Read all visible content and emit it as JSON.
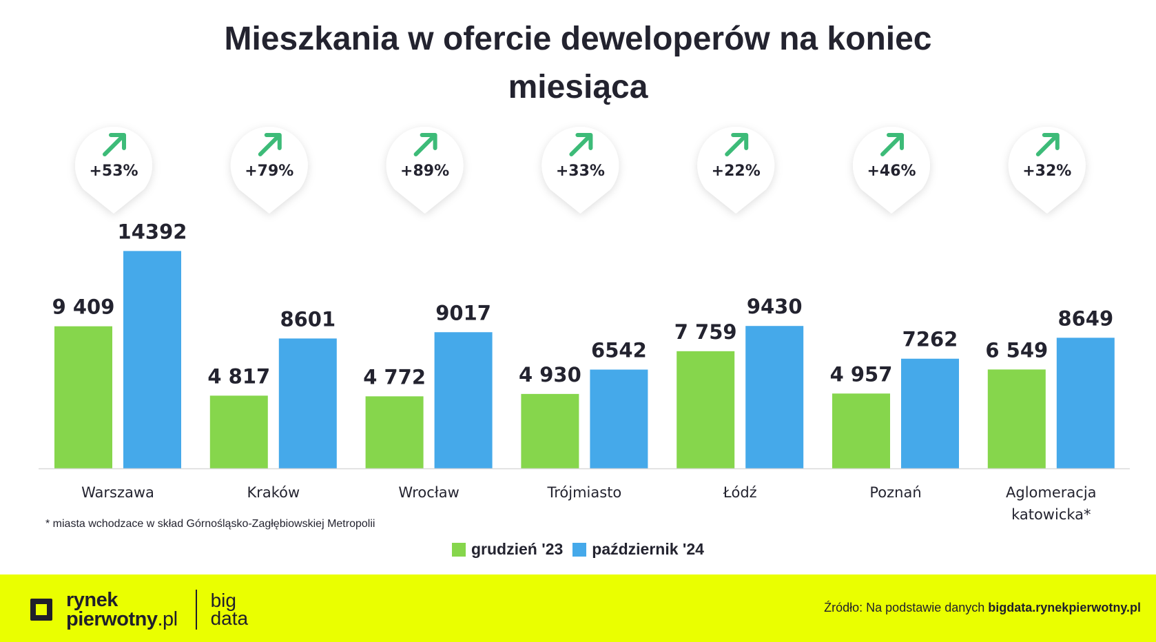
{
  "title": "Mieszkania w ofercie deweloperów na koniec miesiąca",
  "chart_data": {
    "type": "bar",
    "categories": [
      "Warszawa",
      "Kraków",
      "Wrocław",
      "Trójmiasto",
      "Łódź",
      "Poznań",
      "Aglomeracja katowicka*"
    ],
    "series": [
      {
        "name": "grudzień '23",
        "values": [
          9409,
          4817,
          4772,
          4930,
          7759,
          4957,
          6549
        ],
        "labels": [
          "9 409",
          "4 817",
          "4 772",
          "4 930",
          "7 759",
          "4 957",
          "6 549"
        ],
        "color": "#86d64c"
      },
      {
        "name": "październik '24",
        "values": [
          14392,
          8601,
          9017,
          6542,
          9430,
          7262,
          8649
        ],
        "labels": [
          "14392",
          "8601",
          "9017",
          "6542",
          "9430",
          "7262",
          "8649"
        ],
        "color": "#45a9ea"
      }
    ],
    "changes": [
      "+53%",
      "+79%",
      "+89%",
      "+33%",
      "+22%",
      "+46%",
      "+32%"
    ],
    "legend_position": "bottom",
    "grid": false,
    "ylim": [
      0,
      15000
    ]
  },
  "footnote": "* miasta wchodzace w skład Górnośląsko-Zagłębiowskiej Metropolii",
  "legend": [
    {
      "label": "grudzień '23",
      "color": "#86d64c"
    },
    {
      "label": "październik '24",
      "color": "#45a9ea"
    }
  ],
  "footer": {
    "logo_line1": "rynek",
    "logo_line2_bold": "pierwotny",
    "logo_line2_light": ".pl",
    "big_line1": "big",
    "big_line2": "data",
    "source_prefix": "Źródło: Na podstawie danych ",
    "source_link": "bigdata.rynekpierwotny.pl"
  },
  "colors": {
    "accent_green": "#3dbb78",
    "footer_bg": "#eaff00"
  }
}
